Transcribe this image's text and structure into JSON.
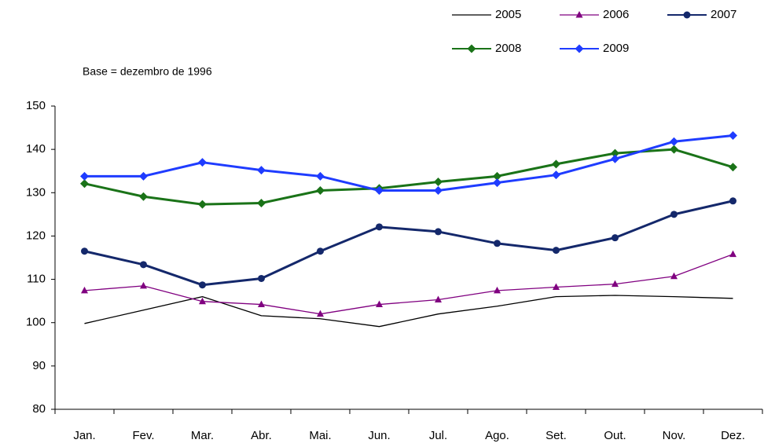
{
  "chart_data": {
    "type": "line",
    "subtitle": "Base = dezembro de 1996",
    "categories": [
      "Jan.",
      "Fev.",
      "Mar.",
      "Abr.",
      "Mai.",
      "Jun.",
      "Jul.",
      "Ago.",
      "Set.",
      "Out.",
      "Nov.",
      "Dez."
    ],
    "series": [
      {
        "name": "2005",
        "color": "#000000",
        "marker": "none",
        "linewidth": 1.3,
        "values": [
          99.8,
          102.9,
          106,
          101.6,
          100.9,
          99.1,
          102,
          103.8,
          106,
          106.3,
          106,
          105.6
        ]
      },
      {
        "name": "2006",
        "color": "#800080",
        "marker": "triangle",
        "linewidth": 1.3,
        "values": [
          107.4,
          108.5,
          104.9,
          104.2,
          102,
          104.2,
          105.3,
          107.4,
          108.2,
          108.9,
          110.7,
          115.8
        ]
      },
      {
        "name": "2007",
        "color": "#14286b",
        "marker": "circle",
        "linewidth": 3,
        "values": [
          116.5,
          113.4,
          108.7,
          110.2,
          116.5,
          122.1,
          121,
          118.3,
          116.7,
          119.6,
          125,
          128.1
        ]
      },
      {
        "name": "2008",
        "color": "#1a7318",
        "marker": "diamond",
        "linewidth": 3,
        "values": [
          132.1,
          129.1,
          127.3,
          127.6,
          130.5,
          131,
          132.5,
          133.8,
          136.6,
          139.1,
          140,
          135.9
        ]
      },
      {
        "name": "2009",
        "color": "#1f3cff",
        "marker": "diamond",
        "linewidth": 3,
        "values": [
          133.8,
          133.8,
          137,
          135.2,
          133.8,
          130.5,
          130.5,
          132.3,
          134.1,
          137.8,
          141.8,
          143.2
        ]
      }
    ],
    "ylim": [
      80,
      150
    ],
    "yticks": [
      80,
      90,
      100,
      110,
      120,
      130,
      140,
      150
    ],
    "grid": false,
    "legend": "top-right"
  }
}
